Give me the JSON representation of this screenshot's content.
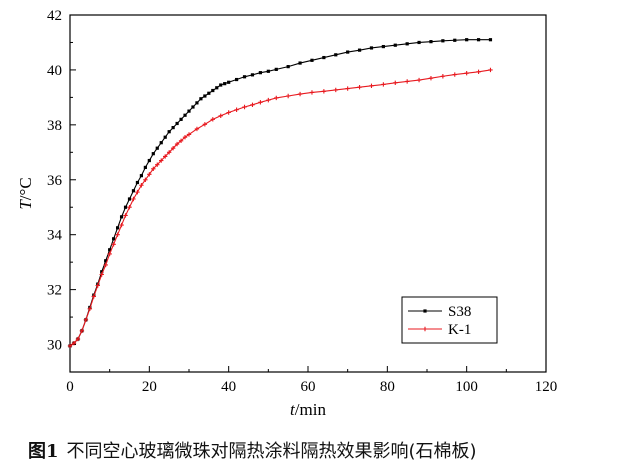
{
  "chart_data": {
    "type": "line",
    "xlabel_italic": "t",
    "xlabel_unit": "/min",
    "ylabel_italic": "T",
    "ylabel_unit": "/°C",
    "xlim": [
      0,
      120
    ],
    "ylim": [
      29,
      42
    ],
    "xticks": [
      0,
      20,
      40,
      60,
      80,
      100,
      120
    ],
    "yticks": [
      30,
      32,
      34,
      36,
      38,
      40,
      42
    ],
    "grid": false,
    "legend_position": "lower-right",
    "series": [
      {
        "name": "S38",
        "color": "#000000",
        "marker": "square",
        "x": [
          0,
          1,
          2,
          3,
          4,
          5,
          6,
          7,
          8,
          9,
          10,
          11,
          12,
          13,
          14,
          15,
          16,
          17,
          18,
          19,
          20,
          21,
          22,
          23,
          24,
          25,
          26,
          27,
          28,
          29,
          30,
          31,
          32,
          33,
          34,
          35,
          36,
          37,
          38,
          39,
          40,
          42,
          44,
          46,
          48,
          50,
          52,
          55,
          58,
          61,
          64,
          67,
          70,
          73,
          76,
          79,
          82,
          85,
          88,
          91,
          94,
          97,
          100,
          103,
          106
        ],
        "values": [
          29.95,
          30.05,
          30.2,
          30.5,
          30.9,
          31.35,
          31.8,
          32.2,
          32.65,
          33.05,
          33.45,
          33.85,
          34.25,
          34.65,
          35.0,
          35.3,
          35.6,
          35.9,
          36.15,
          36.45,
          36.7,
          36.95,
          37.15,
          37.35,
          37.55,
          37.75,
          37.9,
          38.05,
          38.2,
          38.35,
          38.5,
          38.65,
          38.8,
          38.95,
          39.05,
          39.15,
          39.25,
          39.35,
          39.45,
          39.5,
          39.55,
          39.65,
          39.75,
          39.82,
          39.9,
          39.95,
          40.02,
          40.12,
          40.25,
          40.35,
          40.45,
          40.55,
          40.65,
          40.72,
          40.8,
          40.85,
          40.9,
          40.95,
          41.0,
          41.03,
          41.06,
          41.08,
          41.1,
          41.1,
          41.1
        ]
      },
      {
        "name": "K-1",
        "color": "#e8191f",
        "marker": "plus",
        "x": [
          0,
          1,
          2,
          3,
          4,
          5,
          6,
          7,
          8,
          9,
          10,
          11,
          12,
          13,
          14,
          15,
          16,
          17,
          18,
          19,
          20,
          21,
          22,
          23,
          24,
          25,
          26,
          27,
          28,
          29,
          30,
          32,
          34,
          36,
          38,
          40,
          42,
          44,
          46,
          48,
          50,
          52,
          55,
          58,
          61,
          64,
          67,
          70,
          73,
          76,
          79,
          82,
          85,
          88,
          91,
          94,
          97,
          100,
          103,
          106
        ],
        "values": [
          29.95,
          30.05,
          30.2,
          30.5,
          30.9,
          31.3,
          31.75,
          32.15,
          32.55,
          32.9,
          33.3,
          33.65,
          34.0,
          34.35,
          34.7,
          35.0,
          35.3,
          35.55,
          35.8,
          36.0,
          36.2,
          36.4,
          36.55,
          36.7,
          36.85,
          37.0,
          37.15,
          37.3,
          37.42,
          37.55,
          37.65,
          37.85,
          38.02,
          38.2,
          38.33,
          38.45,
          38.55,
          38.65,
          38.73,
          38.82,
          38.9,
          38.98,
          39.05,
          39.12,
          39.18,
          39.22,
          39.27,
          39.32,
          39.37,
          39.42,
          39.47,
          39.53,
          39.58,
          39.63,
          39.7,
          39.77,
          39.83,
          39.88,
          39.93,
          40.0
        ]
      }
    ]
  },
  "caption": {
    "label": "图1",
    "text": "不同空心玻璃微珠对隔热涂料隔热效果影响(石棉板)"
  }
}
